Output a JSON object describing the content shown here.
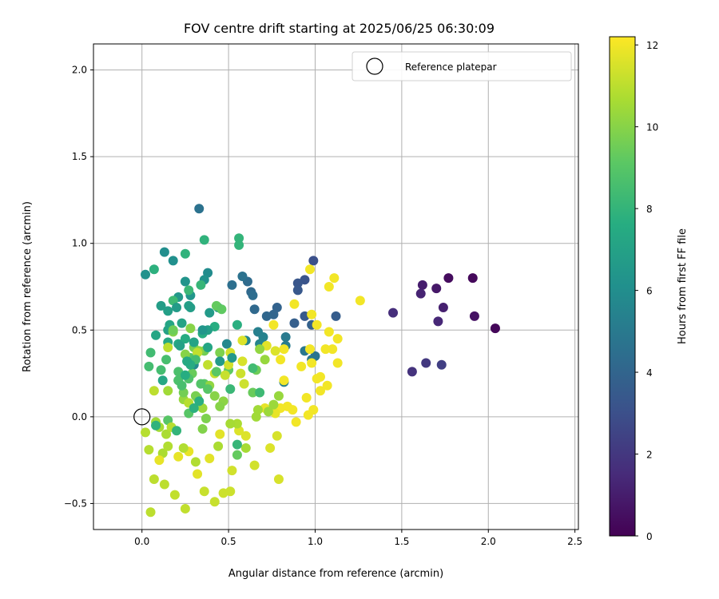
{
  "chart_data": {
    "type": "scatter",
    "title": "FOV centre drift starting at 2025/06/25 06:30:09",
    "xlabel": "Angular distance from reference (arcmin)",
    "ylabel": "Rotation from reference (arcmin)",
    "xlim": [
      -0.28,
      2.52
    ],
    "ylim": [
      -0.65,
      2.15
    ],
    "xticks": [
      0.0,
      0.5,
      1.0,
      1.5,
      2.0,
      2.5
    ],
    "xtick_labels": [
      "0.0",
      "0.5",
      "1.0",
      "1.5",
      "2.0",
      "2.5"
    ],
    "yticks": [
      -0.5,
      0.0,
      0.5,
      1.0,
      1.5,
      2.0
    ],
    "ytick_labels": [
      "−0.5",
      "0.0",
      "0.5",
      "1.0",
      "1.5",
      "2.0"
    ],
    "grid": true,
    "legend": {
      "position": "top-right",
      "entries": [
        "Reference platepar"
      ]
    },
    "reference_point": {
      "x": 0.0,
      "y": 0.0
    },
    "colorbar": {
      "label": "Hours from first FF file",
      "range": [
        0,
        12.2
      ],
      "ticks": [
        0,
        2,
        4,
        6,
        8,
        10,
        12
      ],
      "tick_labels": [
        "0",
        "2",
        "4",
        "6",
        "8",
        "10",
        "12"
      ],
      "colormap": "viridis"
    },
    "points": [
      {
        "x": 2.04,
        "y": 0.51,
        "c": 0.2
      },
      {
        "x": 1.91,
        "y": 0.8,
        "c": 0.3
      },
      {
        "x": 1.77,
        "y": 0.8,
        "c": 0.4
      },
      {
        "x": 1.92,
        "y": 0.58,
        "c": 0.6
      },
      {
        "x": 1.7,
        "y": 0.74,
        "c": 0.8
      },
      {
        "x": 1.62,
        "y": 0.76,
        "c": 1.0
      },
      {
        "x": 1.74,
        "y": 0.63,
        "c": 1.1
      },
      {
        "x": 1.61,
        "y": 0.71,
        "c": 1.2
      },
      {
        "x": 1.71,
        "y": 0.55,
        "c": 1.4
      },
      {
        "x": 1.45,
        "y": 0.6,
        "c": 1.6
      },
      {
        "x": 1.56,
        "y": 0.26,
        "c": 1.8
      },
      {
        "x": 1.64,
        "y": 0.31,
        "c": 2.0
      },
      {
        "x": 1.73,
        "y": 0.3,
        "c": 2.3
      },
      {
        "x": 0.99,
        "y": 0.9,
        "c": 3.0
      },
      {
        "x": 0.94,
        "y": 0.79,
        "c": 3.2
      },
      {
        "x": 0.9,
        "y": 0.77,
        "c": 3.3
      },
      {
        "x": 0.9,
        "y": 0.73,
        "c": 3.4
      },
      {
        "x": 0.94,
        "y": 0.58,
        "c": 3.5
      },
      {
        "x": 1.12,
        "y": 0.58,
        "c": 3.6
      },
      {
        "x": 0.88,
        "y": 0.54,
        "c": 3.7
      },
      {
        "x": 0.98,
        "y": 0.53,
        "c": 3.8
      },
      {
        "x": 0.78,
        "y": 0.63,
        "c": 3.9
      },
      {
        "x": 0.76,
        "y": 0.59,
        "c": 4.0
      },
      {
        "x": 0.72,
        "y": 0.58,
        "c": 4.1
      },
      {
        "x": 0.65,
        "y": 0.62,
        "c": 4.2
      },
      {
        "x": 0.63,
        "y": 0.72,
        "c": 4.2
      },
      {
        "x": 0.61,
        "y": 0.78,
        "c": 4.3
      },
      {
        "x": 0.64,
        "y": 0.7,
        "c": 4.4
      },
      {
        "x": 0.52,
        "y": 0.76,
        "c": 4.5
      },
      {
        "x": 0.58,
        "y": 0.81,
        "c": 4.6
      },
      {
        "x": 0.33,
        "y": 1.2,
        "c": 4.6
      },
      {
        "x": 1.0,
        "y": 0.35,
        "c": 4.7
      },
      {
        "x": 0.98,
        "y": 0.33,
        "c": 4.8
      },
      {
        "x": 0.94,
        "y": 0.38,
        "c": 4.9
      },
      {
        "x": 0.83,
        "y": 0.46,
        "c": 5.0
      },
      {
        "x": 0.83,
        "y": 0.41,
        "c": 5.1
      },
      {
        "x": 0.82,
        "y": 0.2,
        "c": 5.2
      },
      {
        "x": 0.67,
        "y": 0.49,
        "c": 5.3
      },
      {
        "x": 0.7,
        "y": 0.46,
        "c": 5.4
      },
      {
        "x": 0.68,
        "y": 0.42,
        "c": 5.5
      },
      {
        "x": 0.6,
        "y": 0.44,
        "c": 5.6
      },
      {
        "x": 0.49,
        "y": 0.42,
        "c": 5.7
      },
      {
        "x": 0.3,
        "y": 0.3,
        "c": 5.8
      },
      {
        "x": 0.38,
        "y": 0.83,
        "c": 5.9
      },
      {
        "x": 0.13,
        "y": 0.95,
        "c": 6.0
      },
      {
        "x": 0.18,
        "y": 0.9,
        "c": 6.1
      },
      {
        "x": 0.02,
        "y": 0.82,
        "c": 6.2
      },
      {
        "x": 0.36,
        "y": 0.79,
        "c": 6.2
      },
      {
        "x": 0.25,
        "y": 0.78,
        "c": 6.3
      },
      {
        "x": 0.28,
        "y": 0.7,
        "c": 6.4
      },
      {
        "x": 0.21,
        "y": 0.69,
        "c": 6.5
      },
      {
        "x": 0.39,
        "y": 0.6,
        "c": 6.6
      },
      {
        "x": 0.44,
        "y": 0.63,
        "c": 6.7
      },
      {
        "x": 0.11,
        "y": 0.64,
        "c": 6.8
      },
      {
        "x": 0.27,
        "y": 0.64,
        "c": 6.9
      },
      {
        "x": 0.15,
        "y": 0.61,
        "c": 6.9
      },
      {
        "x": 0.15,
        "y": 0.5,
        "c": 7.0
      },
      {
        "x": 0.23,
        "y": 0.54,
        "c": 7.1
      },
      {
        "x": 0.16,
        "y": 0.53,
        "c": 7.2
      },
      {
        "x": 0.08,
        "y": 0.47,
        "c": 7.2
      },
      {
        "x": 0.15,
        "y": 0.43,
        "c": 7.3
      },
      {
        "x": 0.21,
        "y": 0.42,
        "c": 7.4
      },
      {
        "x": 0.25,
        "y": 0.45,
        "c": 7.5
      },
      {
        "x": 0.35,
        "y": 0.48,
        "c": 7.6
      },
      {
        "x": 0.42,
        "y": 0.52,
        "c": 7.6
      },
      {
        "x": 0.55,
        "y": 0.53,
        "c": 7.7
      },
      {
        "x": 0.07,
        "y": 0.85,
        "c": 7.8
      },
      {
        "x": 0.25,
        "y": 0.94,
        "c": 7.9
      },
      {
        "x": 0.36,
        "y": 1.02,
        "c": 7.9
      },
      {
        "x": 0.56,
        "y": 1.03,
        "c": 8.0
      },
      {
        "x": 0.56,
        "y": 0.99,
        "c": 8.0
      },
      {
        "x": 0.34,
        "y": 0.76,
        "c": 8.1
      },
      {
        "x": 0.27,
        "y": 0.73,
        "c": 8.2
      },
      {
        "x": 0.18,
        "y": 0.67,
        "c": 8.3
      },
      {
        "x": 0.05,
        "y": 0.37,
        "c": 8.4
      },
      {
        "x": 0.04,
        "y": 0.29,
        "c": 8.5
      },
      {
        "x": 0.11,
        "y": 0.27,
        "c": 8.5
      },
      {
        "x": 0.14,
        "y": 0.33,
        "c": 8.6
      },
      {
        "x": 0.21,
        "y": 0.26,
        "c": 8.7
      },
      {
        "x": 0.21,
        "y": 0.21,
        "c": 8.8
      },
      {
        "x": 0.28,
        "y": 0.34,
        "c": 8.9
      },
      {
        "x": 0.27,
        "y": 0.02,
        "c": 9.0
      },
      {
        "x": 0.15,
        "y": -0.02,
        "c": 9.0
      },
      {
        "x": 0.36,
        "y": 0.19,
        "c": 9.1
      },
      {
        "x": 0.5,
        "y": 0.27,
        "c": 9.2
      },
      {
        "x": 0.55,
        "y": -0.22,
        "c": 9.3
      },
      {
        "x": 0.64,
        "y": 0.14,
        "c": 9.4
      },
      {
        "x": 0.66,
        "y": 0.27,
        "c": 9.5
      },
      {
        "x": 0.36,
        "y": 0.38,
        "c": 9.6
      },
      {
        "x": 0.3,
        "y": 0.4,
        "c": 9.7
      },
      {
        "x": 0.45,
        "y": 0.37,
        "c": 9.8
      },
      {
        "x": 0.18,
        "y": 0.49,
        "c": 9.9
      },
      {
        "x": 0.28,
        "y": 0.51,
        "c": 10.0
      },
      {
        "x": 0.25,
        "y": 0.36,
        "c": 10.0
      },
      {
        "x": 0.33,
        "y": 0.38,
        "c": 10.1
      },
      {
        "x": 0.39,
        "y": 0.18,
        "c": 10.2
      },
      {
        "x": 0.24,
        "y": 0.1,
        "c": 10.3
      },
      {
        "x": 0.32,
        "y": 0.11,
        "c": 10.3
      },
      {
        "x": 0.35,
        "y": 0.05,
        "c": 10.4
      },
      {
        "x": 0.15,
        "y": 0.15,
        "c": 10.5
      },
      {
        "x": 0.08,
        "y": -0.03,
        "c": 10.5
      },
      {
        "x": 0.1,
        "y": -0.06,
        "c": 10.6
      },
      {
        "x": 0.14,
        "y": -0.1,
        "c": 10.7
      },
      {
        "x": 0.12,
        "y": -0.21,
        "c": 10.7
      },
      {
        "x": 0.15,
        "y": -0.17,
        "c": 10.8
      },
      {
        "x": 0.04,
        "y": -0.19,
        "c": 10.9
      },
      {
        "x": 0.02,
        "y": -0.09,
        "c": 10.9
      },
      {
        "x": 0.07,
        "y": -0.36,
        "c": 11.0
      },
      {
        "x": 0.13,
        "y": -0.39,
        "c": 11.0
      },
      {
        "x": 0.05,
        "y": -0.55,
        "c": 11.0
      },
      {
        "x": 0.19,
        "y": -0.45,
        "c": 11.1
      },
      {
        "x": 0.25,
        "y": -0.53,
        "c": 11.1
      },
      {
        "x": 0.36,
        "y": -0.43,
        "c": 11.2
      },
      {
        "x": 0.42,
        "y": -0.49,
        "c": 11.2
      },
      {
        "x": 0.47,
        "y": -0.44,
        "c": 11.3
      },
      {
        "x": 0.51,
        "y": -0.43,
        "c": 11.3
      },
      {
        "x": 0.52,
        "y": -0.31,
        "c": 11.4
      },
      {
        "x": 0.65,
        "y": -0.28,
        "c": 11.4
      },
      {
        "x": 0.79,
        "y": -0.36,
        "c": 11.5
      },
      {
        "x": 0.78,
        "y": -0.11,
        "c": 11.5
      },
      {
        "x": 0.74,
        "y": -0.18,
        "c": 11.6
      },
      {
        "x": 0.6,
        "y": -0.11,
        "c": 11.6
      },
      {
        "x": 0.56,
        "y": -0.08,
        "c": 11.6
      },
      {
        "x": 0.45,
        "y": -0.1,
        "c": 11.7
      },
      {
        "x": 0.39,
        "y": -0.24,
        "c": 11.7
      },
      {
        "x": 0.32,
        "y": -0.33,
        "c": 11.7
      },
      {
        "x": 0.27,
        "y": -0.2,
        "c": 11.8
      },
      {
        "x": 0.21,
        "y": -0.23,
        "c": 11.8
      },
      {
        "x": 0.1,
        "y": -0.25,
        "c": 11.8
      },
      {
        "x": 0.97,
        "y": 0.85,
        "c": 12.0
      },
      {
        "x": 1.11,
        "y": 0.8,
        "c": 12.0
      },
      {
        "x": 1.08,
        "y": 0.75,
        "c": 12.0
      },
      {
        "x": 1.26,
        "y": 0.67,
        "c": 12.0
      },
      {
        "x": 0.88,
        "y": 0.65,
        "c": 12.0
      },
      {
        "x": 0.98,
        "y": 0.59,
        "c": 12.0
      },
      {
        "x": 1.01,
        "y": 0.53,
        "c": 12.0
      },
      {
        "x": 1.08,
        "y": 0.49,
        "c": 12.0
      },
      {
        "x": 1.13,
        "y": 0.45,
        "c": 12.0
      },
      {
        "x": 1.1,
        "y": 0.39,
        "c": 12.0
      },
      {
        "x": 1.06,
        "y": 0.39,
        "c": 12.0
      },
      {
        "x": 0.97,
        "y": 0.39,
        "c": 12.0
      },
      {
        "x": 1.13,
        "y": 0.31,
        "c": 12.0
      },
      {
        "x": 0.98,
        "y": 0.31,
        "c": 12.0
      },
      {
        "x": 0.92,
        "y": 0.29,
        "c": 12.0
      },
      {
        "x": 1.03,
        "y": 0.23,
        "c": 12.0
      },
      {
        "x": 1.01,
        "y": 0.22,
        "c": 12.0
      },
      {
        "x": 1.07,
        "y": 0.18,
        "c": 12.0
      },
      {
        "x": 1.03,
        "y": 0.15,
        "c": 12.0
      },
      {
        "x": 0.95,
        "y": 0.11,
        "c": 12.0
      },
      {
        "x": 0.76,
        "y": 0.53,
        "c": 12.0
      },
      {
        "x": 0.8,
        "y": 0.33,
        "c": 12.0
      },
      {
        "x": 0.82,
        "y": 0.39,
        "c": 12.0
      },
      {
        "x": 0.82,
        "y": 0.21,
        "c": 12.0
      },
      {
        "x": 0.8,
        "y": 0.05,
        "c": 12.0
      },
      {
        "x": 0.84,
        "y": 0.06,
        "c": 12.0
      },
      {
        "x": 0.87,
        "y": 0.04,
        "c": 12.0
      },
      {
        "x": 0.99,
        "y": 0.04,
        "c": 12.0
      },
      {
        "x": 0.96,
        "y": 0.01,
        "c": 12.0
      },
      {
        "x": 0.89,
        "y": -0.03,
        "c": 12.0
      },
      {
        "x": 0.71,
        "y": 0.05,
        "c": 11.8
      },
      {
        "x": 0.77,
        "y": 0.02,
        "c": 11.8
      },
      {
        "x": 0.72,
        "y": 0.41,
        "c": 11.7
      },
      {
        "x": 0.77,
        "y": 0.38,
        "c": 11.6
      },
      {
        "x": 0.58,
        "y": 0.44,
        "c": 11.6
      },
      {
        "x": 0.58,
        "y": 0.32,
        "c": 11.5
      },
      {
        "x": 0.51,
        "y": 0.37,
        "c": 11.4
      },
      {
        "x": 0.5,
        "y": 0.3,
        "c": 11.4
      },
      {
        "x": 0.57,
        "y": 0.25,
        "c": 11.3
      },
      {
        "x": 0.59,
        "y": 0.19,
        "c": 11.3
      },
      {
        "x": 0.48,
        "y": 0.24,
        "c": 11.2
      },
      {
        "x": 0.42,
        "y": 0.25,
        "c": 11.2
      },
      {
        "x": 0.38,
        "y": 0.3,
        "c": 11.1
      },
      {
        "x": 0.32,
        "y": 0.37,
        "c": 11.1
      },
      {
        "x": 0.15,
        "y": 0.4,
        "c": 11.0
      },
      {
        "x": 0.07,
        "y": 0.15,
        "c": 11.0
      },
      {
        "x": 0.27,
        "y": 0.08,
        "c": 10.9
      },
      {
        "x": 0.17,
        "y": -0.06,
        "c": 10.9
      },
      {
        "x": 0.24,
        "y": -0.18,
        "c": 10.8
      },
      {
        "x": 0.31,
        "y": -0.26,
        "c": 10.8
      },
      {
        "x": 0.44,
        "y": -0.17,
        "c": 10.7
      },
      {
        "x": 0.55,
        "y": -0.04,
        "c": 10.7
      },
      {
        "x": 0.51,
        "y": -0.04,
        "c": 10.6
      },
      {
        "x": 0.6,
        "y": -0.18,
        "c": 10.6
      },
      {
        "x": 0.66,
        "y": 0.0,
        "c": 10.5
      },
      {
        "x": 0.67,
        "y": 0.04,
        "c": 10.5
      },
      {
        "x": 0.73,
        "y": 0.03,
        "c": 10.4
      },
      {
        "x": 0.76,
        "y": 0.07,
        "c": 10.4
      },
      {
        "x": 0.79,
        "y": 0.12,
        "c": 10.3
      },
      {
        "x": 0.71,
        "y": 0.33,
        "c": 10.3
      },
      {
        "x": 0.68,
        "y": 0.39,
        "c": 10.2
      },
      {
        "x": 0.47,
        "y": 0.09,
        "c": 10.1
      },
      {
        "x": 0.45,
        "y": 0.06,
        "c": 10.0
      },
      {
        "x": 0.42,
        "y": 0.12,
        "c": 10.0
      },
      {
        "x": 0.35,
        "y": -0.07,
        "c": 9.9
      },
      {
        "x": 0.37,
        "y": -0.01,
        "c": 9.8
      },
      {
        "x": 0.31,
        "y": 0.12,
        "c": 9.7
      },
      {
        "x": 0.24,
        "y": 0.14,
        "c": 9.6
      },
      {
        "x": 0.18,
        "y": 0.5,
        "c": 9.5
      },
      {
        "x": 0.29,
        "y": 0.25,
        "c": 9.4
      },
      {
        "x": 0.43,
        "y": 0.64,
        "c": 9.3
      },
      {
        "x": 0.46,
        "y": 0.62,
        "c": 9.2
      },
      {
        "x": 0.43,
        "y": 0.26,
        "c": 9.1
      },
      {
        "x": 0.38,
        "y": 0.16,
        "c": 9.0
      },
      {
        "x": 0.34,
        "y": 0.19,
        "c": 8.9
      },
      {
        "x": 0.27,
        "y": 0.22,
        "c": 8.8
      },
      {
        "x": 0.21,
        "y": 0.21,
        "c": 8.7
      },
      {
        "x": 0.23,
        "y": 0.18,
        "c": 8.6
      },
      {
        "x": 0.31,
        "y": 0.33,
        "c": 8.5
      },
      {
        "x": 0.64,
        "y": 0.28,
        "c": 8.4
      },
      {
        "x": 0.68,
        "y": 0.14,
        "c": 8.3
      },
      {
        "x": 0.51,
        "y": 0.16,
        "c": 8.2
      },
      {
        "x": 0.55,
        "y": -0.16,
        "c": 8.1
      },
      {
        "x": 0.2,
        "y": -0.08,
        "c": 8.0
      },
      {
        "x": 0.08,
        "y": -0.05,
        "c": 7.9
      },
      {
        "x": 0.3,
        "y": 0.05,
        "c": 7.8
      },
      {
        "x": 0.33,
        "y": 0.09,
        "c": 7.7
      },
      {
        "x": 0.25,
        "y": 0.24,
        "c": 7.6
      },
      {
        "x": 0.28,
        "y": 0.3,
        "c": 7.5
      },
      {
        "x": 0.26,
        "y": 0.32,
        "c": 7.4
      },
      {
        "x": 0.12,
        "y": 0.21,
        "c": 7.3
      },
      {
        "x": 0.38,
        "y": 0.4,
        "c": 7.2
      },
      {
        "x": 0.3,
        "y": 0.43,
        "c": 7.1
      },
      {
        "x": 0.22,
        "y": 0.41,
        "c": 7.0
      },
      {
        "x": 0.38,
        "y": 0.5,
        "c": 6.9
      },
      {
        "x": 0.28,
        "y": 0.63,
        "c": 6.8
      },
      {
        "x": 0.2,
        "y": 0.63,
        "c": 6.7
      },
      {
        "x": 0.45,
        "y": 0.32,
        "c": 6.6
      },
      {
        "x": 0.52,
        "y": 0.34,
        "c": 6.5
      },
      {
        "x": 0.35,
        "y": 0.5,
        "c": 6.4
      }
    ]
  }
}
